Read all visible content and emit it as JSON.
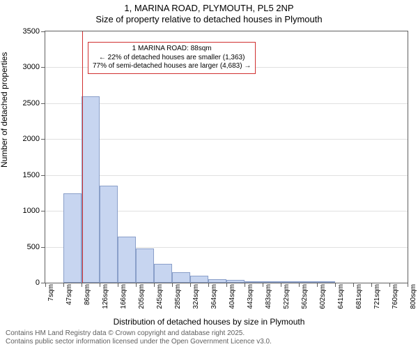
{
  "title_line1": "1, MARINA ROAD, PLYMOUTH, PL5 2NP",
  "title_line2": "Size of property relative to detached houses in Plymouth",
  "y_axis_label": "Number of detached properties",
  "x_axis_label": "Distribution of detached houses by size in Plymouth",
  "footer_line1": "Contains HM Land Registry data © Crown copyright and database right 2025.",
  "footer_line2": "Contains public sector information licensed under the Open Government Licence v3.0.",
  "chart": {
    "type": "histogram",
    "background_color": "#ffffff",
    "grid_color": "#e0e0e0",
    "axis_color": "#606060",
    "bar_fill": "#c7d5f0",
    "bar_border": "#8a9fc9",
    "marker_color": "#d03030",
    "ylim": [
      0,
      3500
    ],
    "yticks": [
      0,
      500,
      1000,
      1500,
      2000,
      2500,
      3000,
      3500
    ],
    "x_tick_labels": [
      "7sqm",
      "47sqm",
      "86sqm",
      "126sqm",
      "166sqm",
      "205sqm",
      "245sqm",
      "285sqm",
      "324sqm",
      "364sqm",
      "404sqm",
      "443sqm",
      "483sqm",
      "522sqm",
      "562sqm",
      "602sqm",
      "641sqm",
      "681sqm",
      "721sqm",
      "760sqm",
      "800sqm"
    ],
    "x_tick_values": [
      7,
      47,
      86,
      126,
      166,
      205,
      245,
      285,
      324,
      364,
      404,
      443,
      483,
      522,
      562,
      602,
      641,
      681,
      721,
      760,
      800
    ],
    "x_domain": [
      7,
      800
    ],
    "bars": [
      {
        "x0": 47,
        "x1": 86,
        "count": 1240
      },
      {
        "x0": 86,
        "x1": 126,
        "count": 2600
      },
      {
        "x0": 126,
        "x1": 166,
        "count": 1350
      },
      {
        "x0": 166,
        "x1": 205,
        "count": 640
      },
      {
        "x0": 205,
        "x1": 245,
        "count": 480
      },
      {
        "x0": 245,
        "x1": 285,
        "count": 260
      },
      {
        "x0": 285,
        "x1": 324,
        "count": 150
      },
      {
        "x0": 324,
        "x1": 364,
        "count": 100
      },
      {
        "x0": 364,
        "x1": 404,
        "count": 50
      },
      {
        "x0": 404,
        "x1": 443,
        "count": 40
      },
      {
        "x0": 443,
        "x1": 483,
        "count": 20
      },
      {
        "x0": 483,
        "x1": 522,
        "count": 10
      },
      {
        "x0": 522,
        "x1": 562,
        "count": 10
      },
      {
        "x0": 562,
        "x1": 602,
        "count": 5
      },
      {
        "x0": 602,
        "x1": 641,
        "count": 5
      }
    ],
    "marker_x": 88,
    "annotation": {
      "line1": "1 MARINA ROAD: 88sqm",
      "line2": "← 22% of detached houses are smaller (1,363)",
      "line3": "77% of semi-detached houses are larger (4,683) →",
      "box_left_value": 100,
      "box_top_value": 3350
    },
    "title_fontsize": 13,
    "label_fontsize": 12,
    "tick_fontsize": 11,
    "anno_fontsize": 10
  }
}
